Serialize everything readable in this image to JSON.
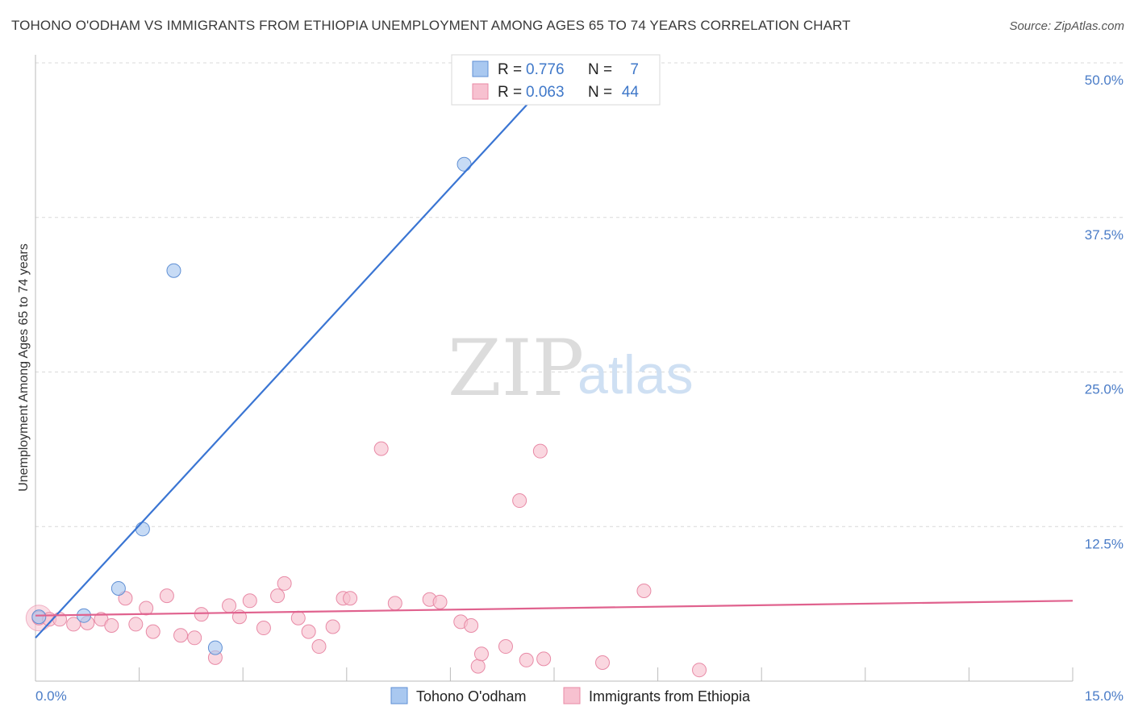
{
  "title": "TOHONO O'ODHAM VS IMMIGRANTS FROM ETHIOPIA UNEMPLOYMENT AMONG AGES 65 TO 74 YEARS CORRELATION CHART",
  "source": "Source: ZipAtlas.com",
  "watermark": {
    "zip": "ZIP",
    "atlas": "atlas"
  },
  "chart_data": {
    "type": "scatter",
    "ylabel": "Unemployment Among Ages 65 to 74 years",
    "xlim": [
      0,
      15
    ],
    "ylim": [
      0,
      50
    ],
    "x_tick_labels": [
      "0.0%",
      "15.0%"
    ],
    "y_ticks": [
      12.5,
      25.0,
      37.5,
      50.0
    ],
    "y_tick_labels": [
      "12.5%",
      "25.0%",
      "37.5%",
      "50.0%"
    ],
    "grid": true,
    "legend_position": "top-center",
    "series": [
      {
        "name": "Tohono O'odham",
        "color": "#a9c8f0",
        "edge": "#5f8fd4",
        "line_color": "#3a75d3",
        "R": "0.776",
        "N": "7",
        "points": [
          [
            0.05,
            5.2
          ],
          [
            0.7,
            5.3
          ],
          [
            1.2,
            7.5
          ],
          [
            1.55,
            12.3
          ],
          [
            2.0,
            33.2
          ],
          [
            2.6,
            2.7
          ],
          [
            6.2,
            41.8
          ]
        ],
        "trend": [
          [
            0.0,
            3.5
          ],
          [
            7.5,
            49.0
          ]
        ]
      },
      {
        "name": "Immigrants from Ethiopia",
        "color": "#f7c1d0",
        "edge": "#e88aa6",
        "line_color": "#e0628e",
        "R": "0.063",
        "N": "44",
        "points": [
          [
            0.05,
            5.1
          ],
          [
            0.2,
            5.0
          ],
          [
            0.35,
            5.0
          ],
          [
            0.55,
            4.6
          ],
          [
            0.75,
            4.7
          ],
          [
            0.95,
            5.0
          ],
          [
            1.1,
            4.5
          ],
          [
            1.3,
            6.7
          ],
          [
            1.45,
            4.6
          ],
          [
            1.6,
            5.9
          ],
          [
            1.7,
            4.0
          ],
          [
            1.9,
            6.9
          ],
          [
            2.1,
            3.7
          ],
          [
            2.3,
            3.5
          ],
          [
            2.4,
            5.4
          ],
          [
            2.6,
            1.9
          ],
          [
            2.8,
            6.1
          ],
          [
            2.95,
            5.2
          ],
          [
            3.1,
            6.5
          ],
          [
            3.3,
            4.3
          ],
          [
            3.5,
            6.9
          ],
          [
            3.6,
            7.9
          ],
          [
            3.8,
            5.1
          ],
          [
            3.95,
            4.0
          ],
          [
            4.1,
            2.8
          ],
          [
            4.3,
            4.4
          ],
          [
            4.45,
            6.7
          ],
          [
            4.55,
            6.7
          ],
          [
            5.0,
            18.8
          ],
          [
            5.2,
            6.3
          ],
          [
            5.7,
            6.6
          ],
          [
            5.85,
            6.4
          ],
          [
            6.15,
            4.8
          ],
          [
            6.3,
            4.5
          ],
          [
            6.4,
            1.2
          ],
          [
            6.45,
            2.2
          ],
          [
            6.8,
            2.8
          ],
          [
            7.0,
            14.6
          ],
          [
            7.1,
            1.7
          ],
          [
            7.3,
            18.6
          ],
          [
            7.35,
            1.8
          ],
          [
            8.2,
            1.5
          ],
          [
            8.8,
            7.3
          ],
          [
            9.6,
            0.9
          ]
        ],
        "trend": [
          [
            0.0,
            5.3
          ],
          [
            15.0,
            6.5
          ]
        ]
      }
    ]
  }
}
